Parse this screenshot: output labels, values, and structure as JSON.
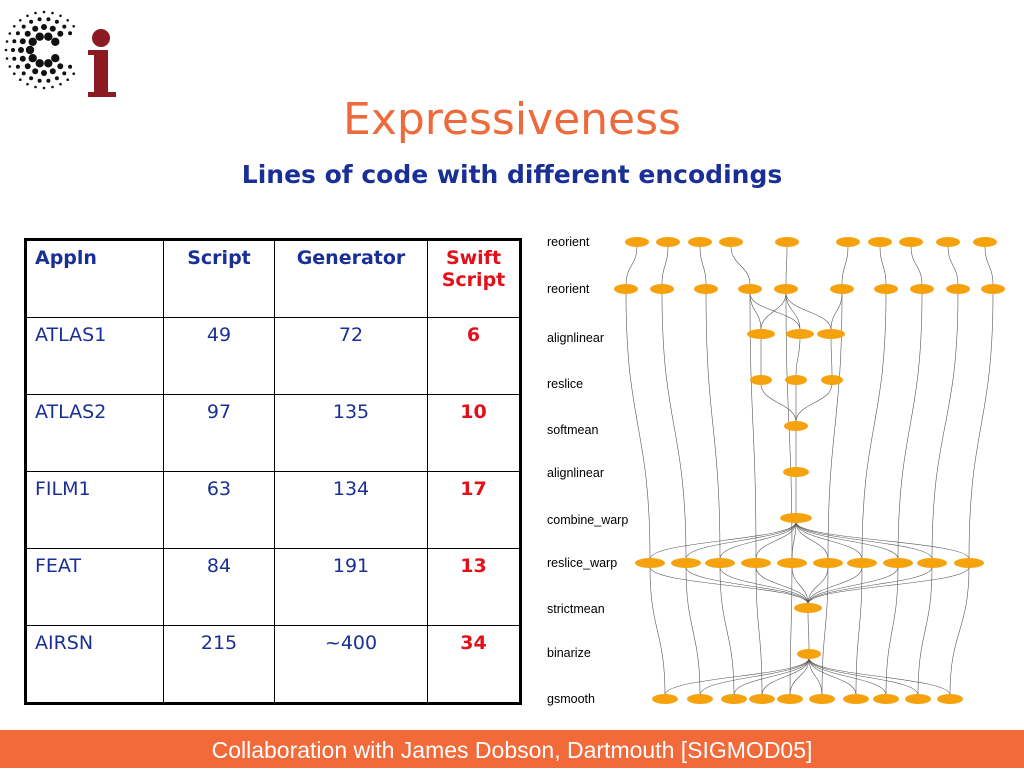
{
  "title": "Expressiveness",
  "subtitle": "Lines of code with different encodings",
  "table": {
    "headers": {
      "appln": "Appln",
      "script": "Script",
      "generator": "Generator",
      "swift": "Swift Script"
    },
    "rows": [
      {
        "appln": "ATLAS1",
        "script": "49",
        "generator": "72",
        "swift": "6"
      },
      {
        "appln": "ATLAS2",
        "script": "97",
        "generator": "135",
        "swift": "10"
      },
      {
        "appln": "FILM1",
        "script": "63",
        "generator": "134",
        "swift": "17"
      },
      {
        "appln": "FEAT",
        "script": "84",
        "generator": "191",
        "swift": "13"
      },
      {
        "appln": "AIRSN",
        "script": "215",
        "generator": "~400",
        "swift": "34"
      }
    ]
  },
  "workflow": {
    "stages": [
      "reorient",
      "reorient",
      "alignlinear",
      "reslice",
      "softmean",
      "alignlinear",
      "combine_warp",
      "reslice_warp",
      "strictmean",
      "binarize",
      "gsmooth"
    ],
    "node_color": "#f5a20d"
  },
  "footer": "Collaboration with James Dobson, Dartmouth [SIGMOD05]",
  "colors": {
    "title": "#ec6a3c",
    "subtitle": "#1a2f96",
    "accent_red": "#e3101a",
    "footer_bg": "#f26a3a",
    "logo_red": "#8b1a22"
  }
}
